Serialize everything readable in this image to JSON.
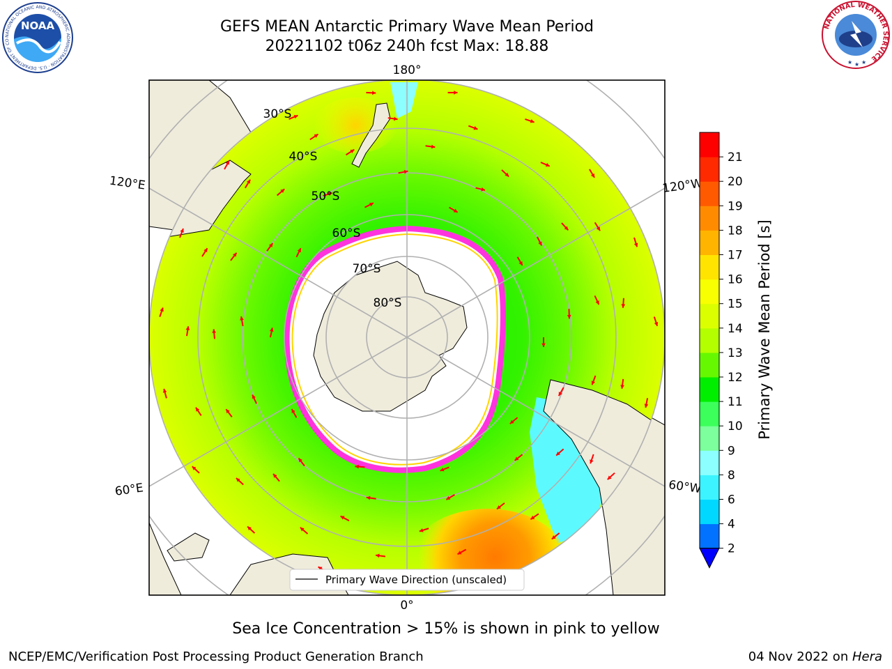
{
  "title": {
    "line1": "GEFS MEAN Antarctic Primary Wave Mean Period",
    "line2": "20221102 t06z 240h fcst   Max: 18.88"
  },
  "map": {
    "projection": "south-polar-stereographic",
    "longitude_labels": [
      "180°",
      "120°E",
      "120°W",
      "60°E",
      "60°W",
      "0°"
    ],
    "latitude_labels": [
      "30°S",
      "40°S",
      "50°S",
      "60°S",
      "70°S",
      "80°S"
    ],
    "legend_label": "Primary Wave Direction (unscaled)",
    "arrow_color": "#ff0000",
    "land_color": "#efecdc",
    "ice_color": "#ffffff",
    "ice_edge_color": "#ff33dd"
  },
  "colorbar": {
    "title": "Primary Wave Mean Period [s]",
    "tick_labels": [
      "2",
      "4",
      "6",
      "8",
      "9",
      "10",
      "11",
      "12",
      "13",
      "14",
      "15",
      "16",
      "17",
      "18",
      "19",
      "20",
      "21"
    ],
    "colors": [
      "#0072ff",
      "#00d8ff",
      "#3cf4ff",
      "#8cffff",
      "#7cff9c",
      "#3cff5c",
      "#00ee00",
      "#66f800",
      "#b4ff00",
      "#dcff00",
      "#f8ff00",
      "#ffe400",
      "#ffb400",
      "#ff8c00",
      "#ff5a00",
      "#ff2a00",
      "#ff0000"
    ],
    "under_color": "#0000ff"
  },
  "footer": {
    "note": "Sea Ice Concentration > 15% is shown in pink to yellow",
    "left": "NCEP/EMC/Verification Post Processing Product Generation Branch",
    "date": "04 Nov 2022 on ",
    "host": "Hera"
  },
  "logos": {
    "noaa_text": "NOAA",
    "noaa_ring": "NATIONAL OCEANIC AND ATMOSPHERIC ADMINISTRATION · U.S. DEPARTMENT OF COMMERCE",
    "nws_ring": "NATIONAL WEATHER SERVICE"
  }
}
